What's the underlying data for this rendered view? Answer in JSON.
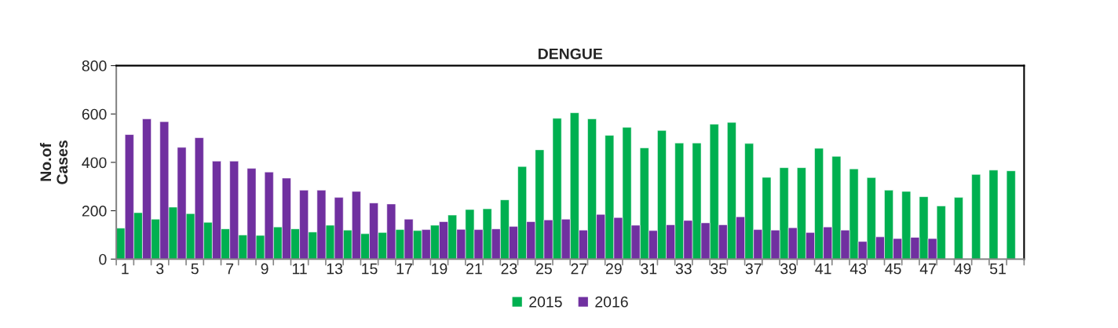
{
  "chart_data": {
    "type": "bar",
    "title": "DENGUE",
    "ylabel": "No.of\nCases",
    "categories": [
      "1",
      null,
      "3",
      null,
      "5",
      null,
      "7",
      null,
      "9",
      null,
      "11",
      null,
      "13",
      null,
      "15",
      null,
      "17",
      null,
      "19",
      null,
      "21",
      null,
      "23",
      null,
      "25",
      null,
      "27",
      null,
      "29",
      null,
      "31",
      null,
      "33",
      null,
      "35",
      null,
      "37",
      null,
      "39",
      null,
      "41",
      null,
      "43",
      null,
      "45",
      null,
      "47",
      null,
      "49",
      null,
      "51",
      null
    ],
    "series": [
      {
        "name": "2015",
        "color": "#00b050",
        "values": [
          128,
          192,
          165,
          215,
          188,
          152,
          125,
          100,
          98,
          133,
          125,
          112,
          140,
          120,
          105,
          110,
          122,
          118,
          140,
          182,
          205,
          208,
          245,
          383,
          452,
          582,
          605,
          580,
          512,
          545,
          460,
          532,
          480,
          480,
          558,
          565,
          478,
          338,
          378,
          378,
          458,
          425,
          373,
          337,
          285,
          280,
          258,
          220,
          255,
          350,
          368,
          365
        ]
      },
      {
        "name": "2016",
        "color": "#7030a0",
        "values": [
          515,
          580,
          568,
          462,
          502,
          405,
          405,
          375,
          360,
          335,
          285,
          285,
          255,
          280,
          232,
          228,
          165,
          122,
          155,
          123,
          122,
          125,
          135,
          155,
          162,
          165,
          120,
          185,
          172,
          140,
          118,
          142,
          160,
          150,
          142,
          175,
          122,
          120,
          130,
          110,
          133,
          120,
          73,
          92,
          85,
          90,
          85,
          null,
          null,
          null,
          null,
          null
        ]
      }
    ],
    "ylim": [
      0,
      800
    ],
    "yticks": [
      0,
      200,
      400,
      600,
      800
    ],
    "grid": false,
    "legend": "bottom"
  }
}
